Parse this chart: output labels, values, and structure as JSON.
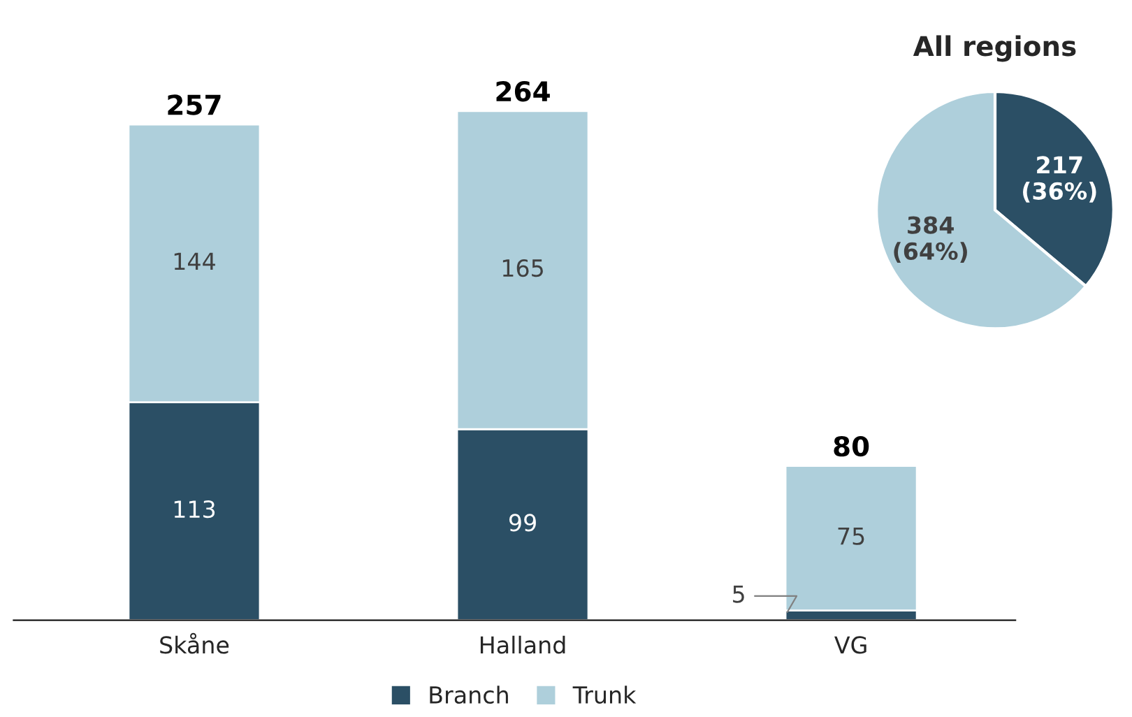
{
  "chart_data": [
    {
      "type": "bar",
      "stacked": true,
      "categories": [
        "Skåne",
        "Halland",
        "VG"
      ],
      "series": [
        {
          "name": "Branch",
          "color": "#2b4f65",
          "values": [
            113,
            99,
            5
          ]
        },
        {
          "name": "Trunk",
          "color": "#aecfdb",
          "values": [
            144,
            165,
            75
          ]
        }
      ],
      "data_labels": true,
      "totals": [
        "257",
        "264",
        "80"
      ],
      "legend": "bottom",
      "grid": false
    },
    {
      "type": "pie",
      "title": "All regions",
      "categories": [
        null,
        null
      ],
      "values": [
        217,
        384
      ],
      "colors": [
        "#2b4f65",
        "#aecfdb"
      ],
      "value_labels": [
        "217\n(36%)",
        "384\n(64%)"
      ]
    }
  ]
}
